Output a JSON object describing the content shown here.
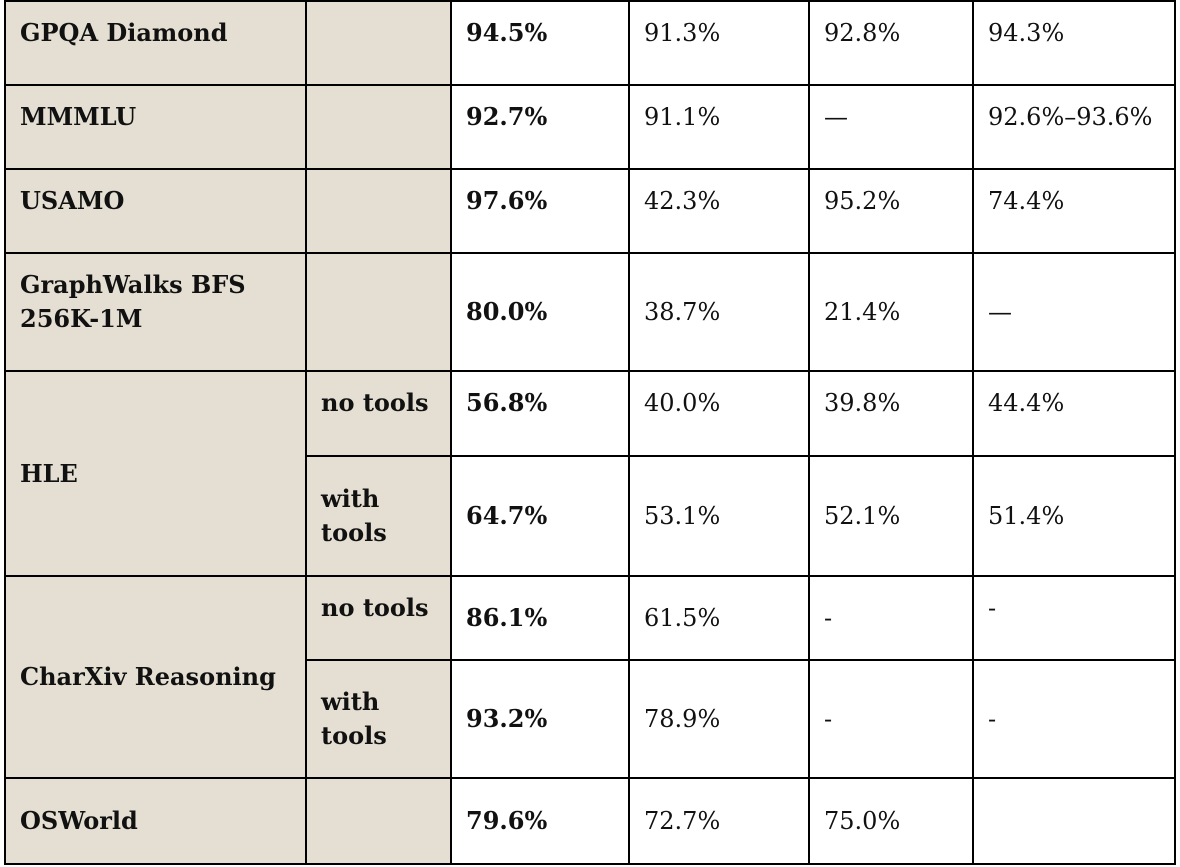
{
  "rows": {
    "gpqa": {
      "label": "GPQA Diamond",
      "sub": "",
      "values": [
        "94.5%",
        "91.3%",
        "92.8%",
        "94.3%"
      ]
    },
    "mmmlu": {
      "label": "MMMLU",
      "sub": "",
      "values": [
        "92.7%",
        "91.1%",
        "—",
        "92.6%–93.6%"
      ]
    },
    "usamo": {
      "label": "USAMO",
      "sub": "",
      "values": [
        "97.6%",
        "42.3%",
        "95.2%",
        "74.4%"
      ]
    },
    "graphwalks": {
      "label_line1": "GraphWalks BFS",
      "label_line2": "256K-1M",
      "sub": "",
      "values": [
        "80.0%",
        "38.7%",
        "21.4%",
        "—"
      ]
    },
    "hle": {
      "label": "HLE",
      "variants": [
        {
          "sub": "no tools",
          "values": [
            "56.8%",
            "40.0%",
            "39.8%",
            "44.4%"
          ]
        },
        {
          "sub_line1": "with",
          "sub_line2": "tools",
          "values": [
            "64.7%",
            "53.1%",
            "52.1%",
            "51.4%"
          ]
        }
      ]
    },
    "charxiv": {
      "label": "CharXiv Reasoning",
      "variants": [
        {
          "sub": "no tools",
          "values": [
            "86.1%",
            "61.5%",
            "-",
            "-"
          ]
        },
        {
          "sub_line1": "with",
          "sub_line2": "tools",
          "values": [
            "93.2%",
            "78.9%",
            "-",
            "-"
          ]
        }
      ]
    },
    "osworld": {
      "label": "OSWorld",
      "sub": "",
      "values": [
        "79.6%",
        "72.7%",
        "75.0%",
        ""
      ]
    }
  }
}
